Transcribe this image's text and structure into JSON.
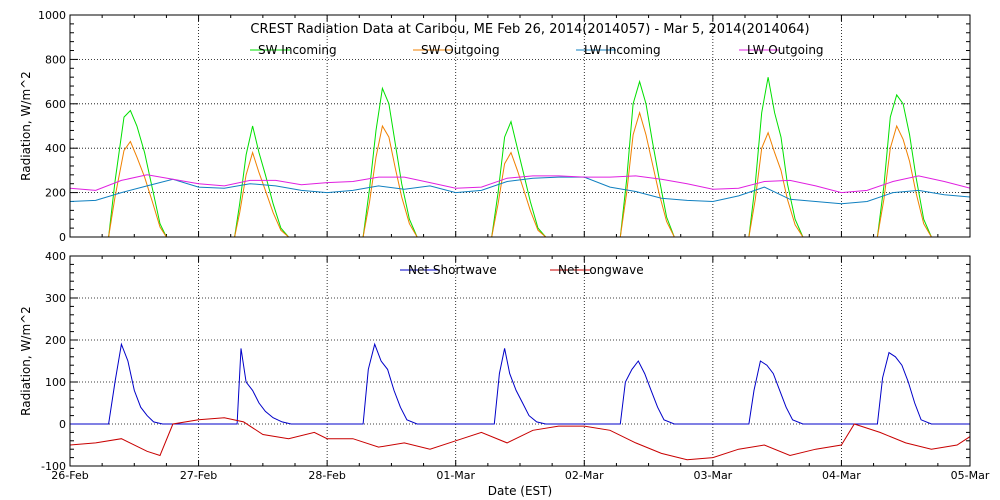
{
  "chart_data": [
    {
      "type": "line",
      "title": "CREST Radiation Data at Caribou, ME   Feb 26, 2014(2014057) - Mar  5, 2014(2014064)",
      "ylabel": "Radiation, W/m^2",
      "xlabel": "",
      "ylim": [
        0,
        1000
      ],
      "yticks": [
        0,
        200,
        400,
        600,
        800,
        1000
      ],
      "xlim": [
        0,
        7
      ],
      "xtick_labels": [
        "",
        "",
        "",
        "",
        "",
        "",
        "",
        ""
      ],
      "grid": true,
      "legend_position": "top",
      "series": [
        {
          "name": "SW Incoming",
          "color": "#00e000",
          "x": [
            0.0,
            0.3,
            0.35,
            0.42,
            0.47,
            0.52,
            0.58,
            0.64,
            0.7,
            0.75,
            1.0,
            1.28,
            1.32,
            1.37,
            1.42,
            1.47,
            1.52,
            1.58,
            1.64,
            1.7,
            2.0,
            2.28,
            2.33,
            2.38,
            2.43,
            2.48,
            2.53,
            2.58,
            2.64,
            2.7,
            3.0,
            3.28,
            3.33,
            3.38,
            3.43,
            3.48,
            3.53,
            3.58,
            3.64,
            3.7,
            4.0,
            4.28,
            4.33,
            4.38,
            4.43,
            4.48,
            4.53,
            4.58,
            4.64,
            4.7,
            5.0,
            5.28,
            5.33,
            5.38,
            5.43,
            5.48,
            5.53,
            5.58,
            5.64,
            5.7,
            6.0,
            6.28,
            6.33,
            6.38,
            6.43,
            6.48,
            6.53,
            6.58,
            6.64,
            6.7,
            7.0
          ],
          "y": [
            0,
            0,
            250,
            540,
            570,
            500,
            380,
            220,
            60,
            0,
            0,
            0,
            150,
            370,
            500,
            380,
            280,
            150,
            40,
            0,
            0,
            0,
            220,
            480,
            670,
            600,
            420,
            240,
            80,
            0,
            0,
            0,
            200,
            450,
            520,
            400,
            280,
            160,
            40,
            0,
            0,
            0,
            260,
            600,
            700,
            600,
            430,
            270,
            90,
            0,
            0,
            0,
            240,
            560,
            720,
            560,
            450,
            240,
            80,
            0,
            0,
            0,
            230,
            540,
            640,
            600,
            460,
            270,
            80,
            0,
            0
          ]
        },
        {
          "name": "SW Outgoing",
          "color": "#f08000",
          "x": [
            0.0,
            0.3,
            0.35,
            0.42,
            0.47,
            0.52,
            0.58,
            0.64,
            0.7,
            0.75,
            1.0,
            1.28,
            1.32,
            1.37,
            1.42,
            1.47,
            1.52,
            1.58,
            1.64,
            1.7,
            2.0,
            2.28,
            2.33,
            2.38,
            2.43,
            2.48,
            2.53,
            2.58,
            2.64,
            2.7,
            3.0,
            3.28,
            3.33,
            3.38,
            3.43,
            3.48,
            3.53,
            3.58,
            3.64,
            3.7,
            4.0,
            4.28,
            4.33,
            4.38,
            4.43,
            4.48,
            4.53,
            4.58,
            4.64,
            4.7,
            5.0,
            5.28,
            5.33,
            5.38,
            5.43,
            5.48,
            5.53,
            5.58,
            5.64,
            5.7,
            6.0,
            6.28,
            6.33,
            6.38,
            6.43,
            6.48,
            6.53,
            6.58,
            6.64,
            6.7,
            7.0
          ],
          "y": [
            0,
            0,
            180,
            390,
            430,
            360,
            270,
            160,
            45,
            0,
            0,
            0,
            110,
            280,
            380,
            290,
            210,
            110,
            30,
            0,
            0,
            0,
            160,
            360,
            500,
            450,
            310,
            180,
            60,
            0,
            0,
            0,
            150,
            330,
            380,
            300,
            210,
            120,
            30,
            0,
            0,
            0,
            200,
            460,
            560,
            460,
            330,
            200,
            70,
            0,
            0,
            0,
            170,
            400,
            470,
            380,
            300,
            170,
            55,
            0,
            0,
            0,
            170,
            400,
            500,
            440,
            340,
            200,
            60,
            0,
            0
          ]
        },
        {
          "name": "LW Incoming",
          "color": "#1080c0",
          "x": [
            0.0,
            0.2,
            0.4,
            0.6,
            0.8,
            1.0,
            1.2,
            1.4,
            1.6,
            1.8,
            2.0,
            2.2,
            2.4,
            2.6,
            2.8,
            3.0,
            3.2,
            3.4,
            3.6,
            3.8,
            4.0,
            4.2,
            4.4,
            4.6,
            4.8,
            5.0,
            5.2,
            5.4,
            5.6,
            5.8,
            6.0,
            6.2,
            6.4,
            6.6,
            6.8,
            7.0
          ],
          "y": [
            160,
            165,
            200,
            230,
            260,
            225,
            220,
            240,
            230,
            210,
            200,
            210,
            230,
            215,
            230,
            200,
            210,
            250,
            265,
            270,
            270,
            225,
            205,
            175,
            165,
            160,
            185,
            225,
            170,
            160,
            150,
            160,
            200,
            210,
            190,
            180
          ]
        },
        {
          "name": "LW Outgoing",
          "color": "#e020e0",
          "x": [
            0.0,
            0.2,
            0.4,
            0.6,
            0.8,
            1.0,
            1.2,
            1.4,
            1.6,
            1.8,
            2.0,
            2.2,
            2.4,
            2.6,
            2.8,
            3.0,
            3.2,
            3.4,
            3.6,
            3.8,
            4.0,
            4.2,
            4.4,
            4.6,
            4.8,
            5.0,
            5.2,
            5.4,
            5.6,
            5.8,
            6.0,
            6.2,
            6.4,
            6.6,
            6.8,
            7.0
          ],
          "y": [
            220,
            210,
            255,
            280,
            260,
            240,
            230,
            255,
            255,
            235,
            245,
            250,
            270,
            270,
            245,
            220,
            225,
            265,
            275,
            275,
            270,
            270,
            275,
            260,
            240,
            215,
            220,
            250,
            255,
            230,
            200,
            210,
            250,
            275,
            250,
            220
          ]
        }
      ]
    },
    {
      "type": "line",
      "title": "",
      "ylabel": "Radiation, W/m^2",
      "xlabel": "Date (EST)",
      "ylim": [
        -100,
        400
      ],
      "yticks": [
        -100,
        0,
        100,
        200,
        300,
        400
      ],
      "xlim": [
        0,
        7
      ],
      "xtick_labels": [
        "26-Feb",
        "27-Feb",
        "28-Feb",
        "01-Mar",
        "02-Mar",
        "03-Mar",
        "04-Mar",
        "05-Mar"
      ],
      "grid": true,
      "legend_position": "top",
      "series": [
        {
          "name": "Net Shortwave",
          "color": "#0000c8",
          "x": [
            0.0,
            0.3,
            0.35,
            0.4,
            0.45,
            0.5,
            0.55,
            0.6,
            0.65,
            0.72,
            1.0,
            1.3,
            1.33,
            1.37,
            1.42,
            1.47,
            1.52,
            1.58,
            1.65,
            1.72,
            2.0,
            2.28,
            2.32,
            2.37,
            2.42,
            2.47,
            2.52,
            2.57,
            2.62,
            2.7,
            3.0,
            3.3,
            3.34,
            3.38,
            3.42,
            3.47,
            3.52,
            3.57,
            3.63,
            3.7,
            4.0,
            4.28,
            4.32,
            4.37,
            4.42,
            4.47,
            4.52,
            4.57,
            4.62,
            4.7,
            5.0,
            5.28,
            5.32,
            5.37,
            5.42,
            5.47,
            5.52,
            5.57,
            5.62,
            5.7,
            6.0,
            6.28,
            6.32,
            6.37,
            6.42,
            6.47,
            6.52,
            6.57,
            6.62,
            6.7,
            7.0
          ],
          "y": [
            0,
            0,
            100,
            190,
            150,
            80,
            40,
            20,
            5,
            0,
            0,
            0,
            180,
            100,
            80,
            50,
            30,
            15,
            5,
            0,
            0,
            0,
            130,
            190,
            150,
            130,
            80,
            40,
            10,
            0,
            0,
            0,
            120,
            180,
            120,
            80,
            50,
            20,
            5,
            0,
            0,
            0,
            100,
            130,
            150,
            120,
            80,
            40,
            10,
            0,
            0,
            0,
            80,
            150,
            140,
            120,
            80,
            40,
            10,
            0,
            0,
            0,
            110,
            170,
            160,
            140,
            100,
            50,
            10,
            0,
            0
          ]
        },
        {
          "name": "Net Longwave",
          "color": "#c80000",
          "x": [
            0.0,
            0.2,
            0.4,
            0.6,
            0.7,
            0.8,
            1.0,
            1.2,
            1.35,
            1.5,
            1.7,
            1.9,
            2.0,
            2.2,
            2.4,
            2.6,
            2.8,
            3.0,
            3.2,
            3.4,
            3.6,
            3.8,
            4.0,
            4.2,
            4.4,
            4.6,
            4.8,
            5.0,
            5.2,
            5.4,
            5.6,
            5.8,
            6.0,
            6.1,
            6.3,
            6.5,
            6.7,
            6.9,
            7.0
          ],
          "y": [
            -50,
            -45,
            -35,
            -65,
            -75,
            0,
            10,
            15,
            5,
            -25,
            -35,
            -20,
            -35,
            -35,
            -55,
            -45,
            -60,
            -40,
            -20,
            -45,
            -15,
            -5,
            -5,
            -15,
            -45,
            -70,
            -85,
            -80,
            -60,
            -50,
            -75,
            -60,
            -50,
            0,
            -20,
            -45,
            -60,
            -50,
            -30
          ]
        }
      ]
    }
  ]
}
